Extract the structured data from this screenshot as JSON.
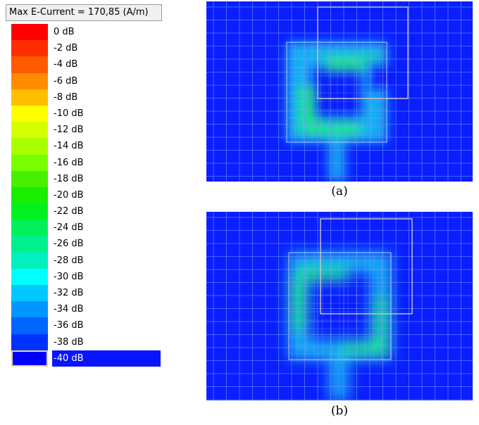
{
  "legend": {
    "title": "Max E-Current = 170,85 (A/m)",
    "entries": [
      {
        "label": "0 dB",
        "color": "#ff0000"
      },
      {
        "label": "-2 dB",
        "color": "#ff2d00"
      },
      {
        "label": "-4 dB",
        "color": "#ff5a00"
      },
      {
        "label": "-6 dB",
        "color": "#ff8c00"
      },
      {
        "label": "-8 dB",
        "color": "#ffbe00"
      },
      {
        "label": "-10 dB",
        "color": "#ffff00"
      },
      {
        "label": "-12 dB",
        "color": "#d4ff00"
      },
      {
        "label": "-14 dB",
        "color": "#a8ff00"
      },
      {
        "label": "-16 dB",
        "color": "#78ff00"
      },
      {
        "label": "-18 dB",
        "color": "#46f000"
      },
      {
        "label": "-20 dB",
        "color": "#18ee00"
      },
      {
        "label": "-22 dB",
        "color": "#00f21e"
      },
      {
        "label": "-24 dB",
        "color": "#00f05a"
      },
      {
        "label": "-26 dB",
        "color": "#00f090"
      },
      {
        "label": "-28 dB",
        "color": "#00f0c0"
      },
      {
        "label": "-30 dB",
        "color": "#00ffff"
      },
      {
        "label": "-32 dB",
        "color": "#00c8ff"
      },
      {
        "label": "-34 dB",
        "color": "#0096ff"
      },
      {
        "label": "-36 dB",
        "color": "#0064ff"
      },
      {
        "label": "-38 dB",
        "color": "#0032ff"
      },
      {
        "label": "-40 dB",
        "color": "#0000ff",
        "selected": true
      }
    ]
  },
  "panels": [
    {
      "caption": "(a)",
      "variant": "a"
    },
    {
      "caption": "(b)",
      "variant": "b"
    }
  ],
  "colors": {
    "field_background": "#0a1eff",
    "grid_line": "#6e96ff",
    "patch_outline": "#cfc7c2",
    "current_high": "#1ee88a",
    "current_mid": "#18c8f0"
  }
}
